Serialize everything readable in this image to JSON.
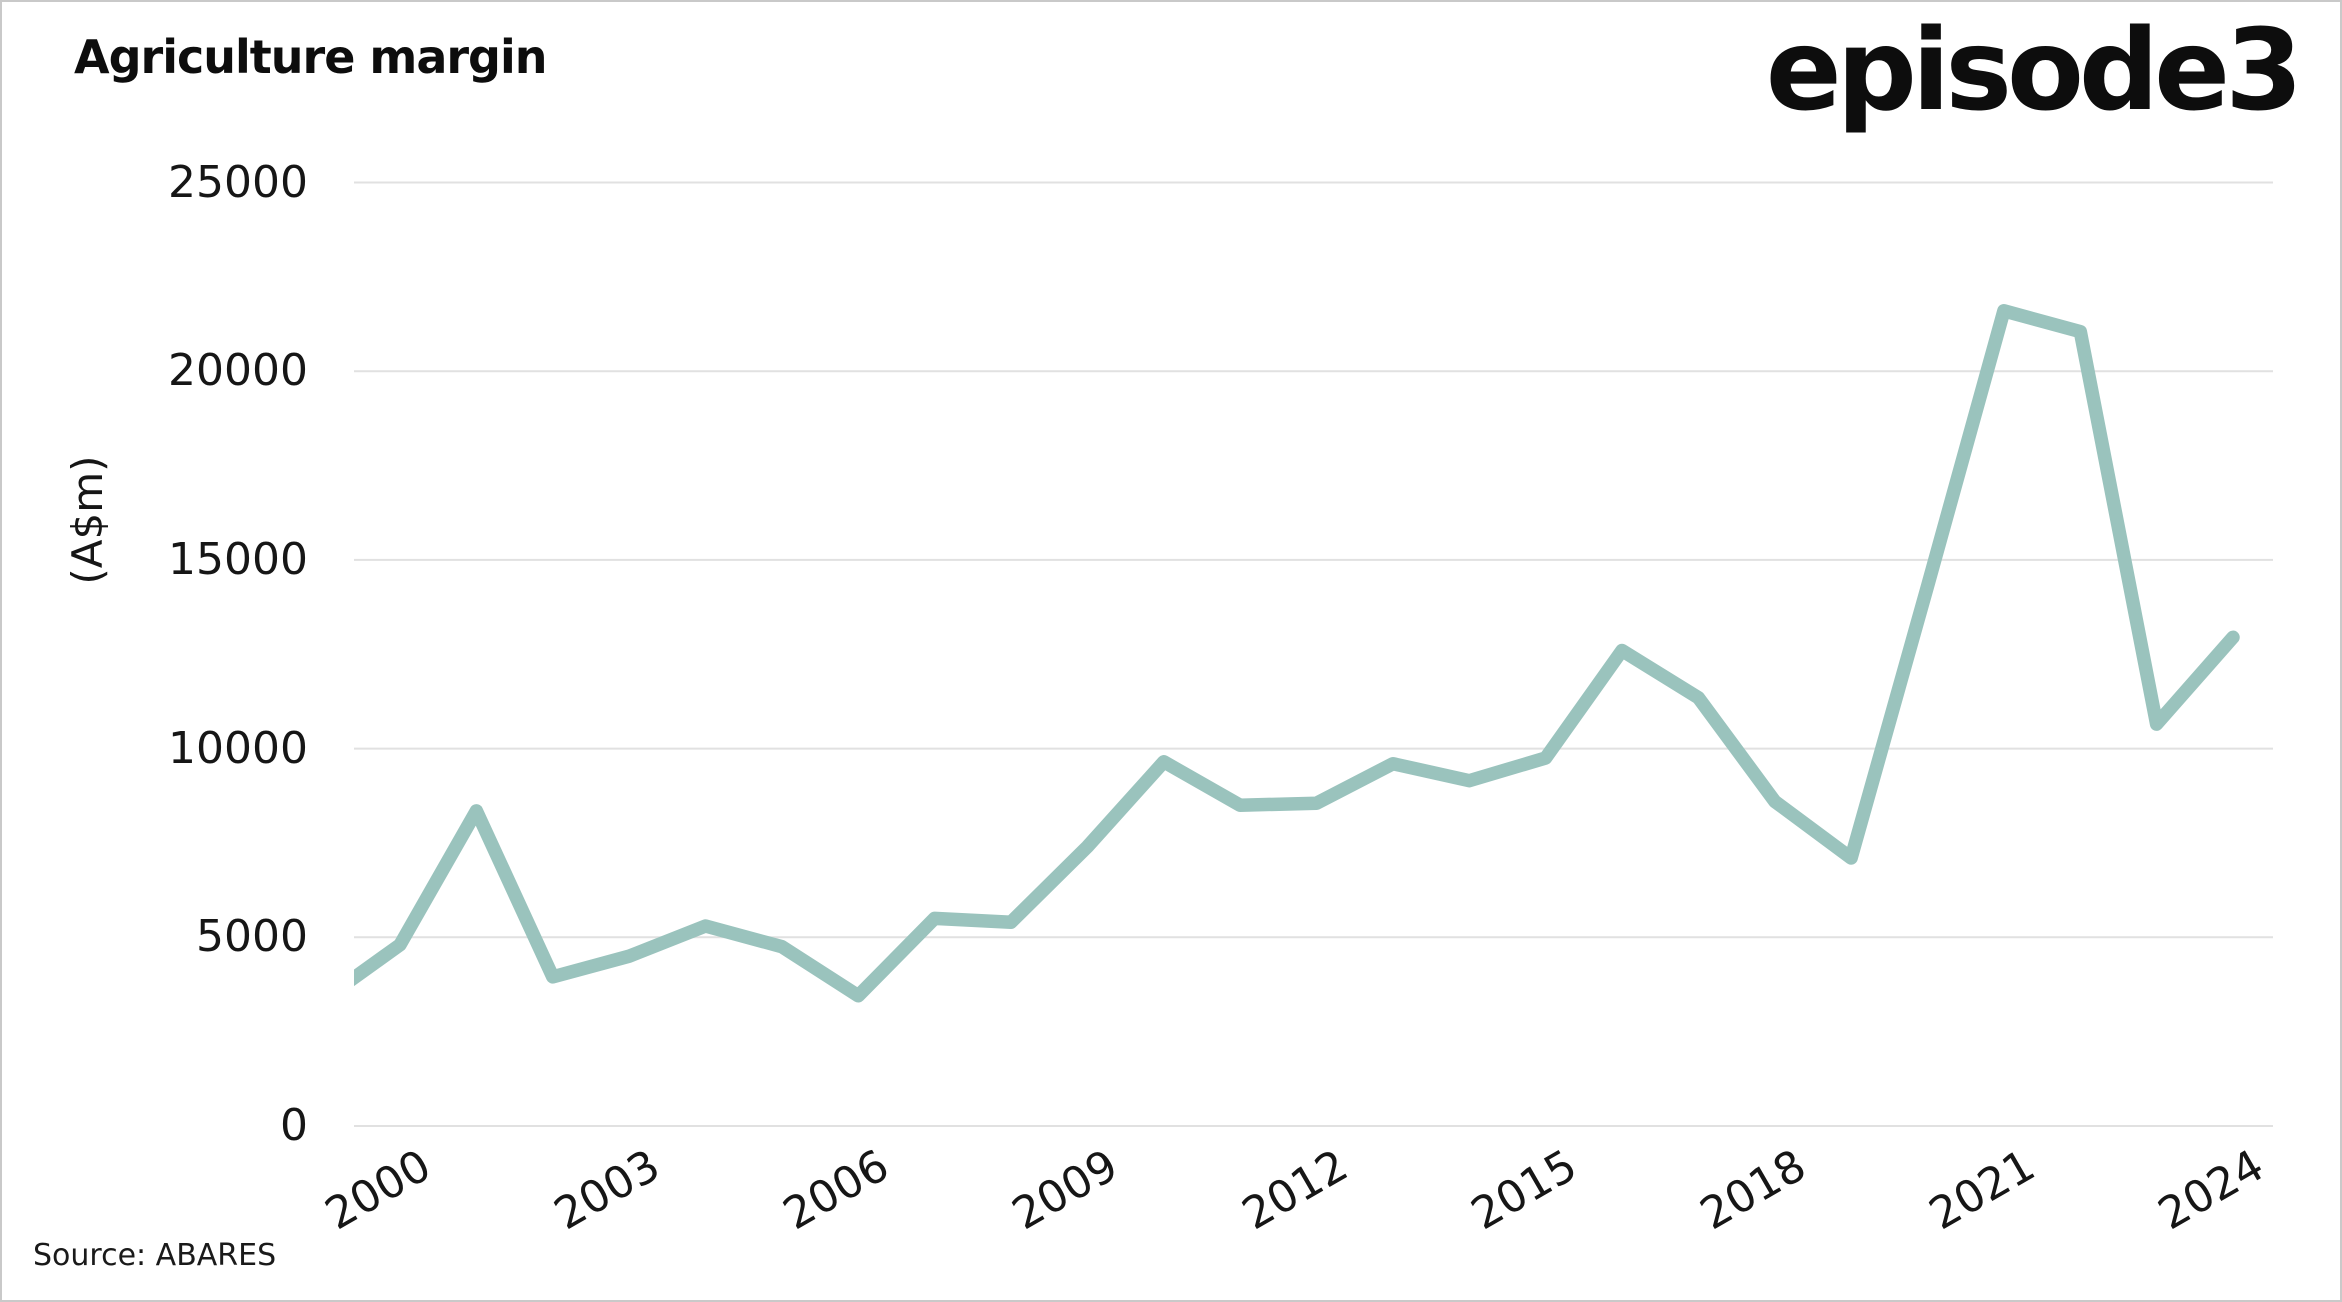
{
  "header": {
    "title": "Agriculture margin",
    "brand": "episode3"
  },
  "footer": {
    "source": "Source: ABARES"
  },
  "chart_data": {
    "type": "line",
    "title": "Agriculture margin",
    "ylabel": "(A$m)",
    "xlabel": "",
    "x": [
      1999,
      2000,
      2001,
      2002,
      2003,
      2004,
      2005,
      2006,
      2007,
      2008,
      2009,
      2010,
      2011,
      2012,
      2013,
      2014,
      2015,
      2016,
      2017,
      2018,
      2019,
      2020,
      2021,
      2022,
      2023,
      2024
    ],
    "values": [
      3350,
      4800,
      8350,
      3950,
      4500,
      5300,
      4750,
      3450,
      5500,
      5400,
      7400,
      9650,
      8500,
      8550,
      9600,
      9150,
      9750,
      12600,
      11350,
      8600,
      7100,
      14300,
      21600,
      21050,
      10650,
      12950
    ],
    "series_name": "Agriculture margin",
    "x_ticks": [
      2000,
      2003,
      2006,
      2009,
      2012,
      2015,
      2018,
      2021,
      2024
    ],
    "y_ticks": [
      0,
      5000,
      10000,
      15000,
      20000,
      25000
    ],
    "ylim": [
      0,
      25000
    ],
    "grid": true,
    "legend": false,
    "note_first_point_clipped_at_panel_edge": true,
    "colors": {
      "line": "#9ac3bd",
      "gridline": "#e1e1e1",
      "text": "#161616",
      "background": "#ffffff"
    }
  }
}
